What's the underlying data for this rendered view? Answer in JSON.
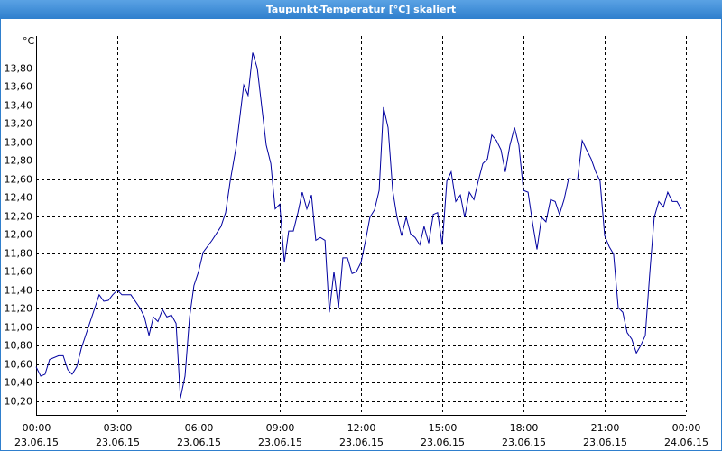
{
  "chart_data": {
    "type": "line",
    "title": "Taupunkt-Temperatur [°C] skaliert",
    "ylabel": "°C",
    "xlim": [
      0,
      24
    ],
    "ylim": [
      10.05,
      14.15
    ],
    "grid": true,
    "xticks": [
      {
        "value": 0,
        "label": "00:00",
        "sublabel": "23.06.15"
      },
      {
        "value": 3,
        "label": "03:00",
        "sublabel": "23.06.15"
      },
      {
        "value": 6,
        "label": "06:00",
        "sublabel": "23.06.15"
      },
      {
        "value": 9,
        "label": "09:00",
        "sublabel": "23.06.15"
      },
      {
        "value": 12,
        "label": "12:00",
        "sublabel": "23.06.15"
      },
      {
        "value": 15,
        "label": "15:00",
        "sublabel": "23.06.15"
      },
      {
        "value": 18,
        "label": "18:00",
        "sublabel": "23.06.15"
      },
      {
        "value": 21,
        "label": "21:00",
        "sublabel": "23.06.15"
      },
      {
        "value": 24,
        "label": "00:00",
        "sublabel": "24.06.15"
      }
    ],
    "yticks": [
      {
        "value": 10.2,
        "label": "10,20"
      },
      {
        "value": 10.4,
        "label": "10,40"
      },
      {
        "value": 10.6,
        "label": "10,60"
      },
      {
        "value": 10.8,
        "label": "10,80"
      },
      {
        "value": 11.0,
        "label": "11,00"
      },
      {
        "value": 11.2,
        "label": "11,20"
      },
      {
        "value": 11.4,
        "label": "11,40"
      },
      {
        "value": 11.6,
        "label": "11,60"
      },
      {
        "value": 11.8,
        "label": "11,80"
      },
      {
        "value": 12.0,
        "label": "12,00"
      },
      {
        "value": 12.2,
        "label": "12,20"
      },
      {
        "value": 12.4,
        "label": "12,40"
      },
      {
        "value": 12.6,
        "label": "12,60"
      },
      {
        "value": 12.8,
        "label": "12,80"
      },
      {
        "value": 13.0,
        "label": "13,00"
      },
      {
        "value": 13.2,
        "label": "13,20"
      },
      {
        "value": 13.4,
        "label": "13,40"
      },
      {
        "value": 13.6,
        "label": "13,60"
      },
      {
        "value": 13.8,
        "label": "13,80"
      }
    ],
    "x": [
      0,
      0.17,
      0.33,
      0.5,
      0.83,
      1,
      1.17,
      1.33,
      1.5,
      1.67,
      2,
      2.33,
      2.5,
      2.67,
      2.83,
      3,
      3.17,
      3.5,
      3.83,
      4,
      4.17,
      4.33,
      4.5,
      4.67,
      4.83,
      5,
      5.17,
      5.33,
      5.5,
      5.67,
      5.83,
      6,
      6.17,
      6.5,
      6.83,
      7,
      7.17,
      7.4,
      7.67,
      7.83,
      8,
      8.17,
      8.5,
      8.67,
      8.83,
      9,
      9.17,
      9.33,
      9.5,
      9.67,
      9.83,
      10,
      10.17,
      10.33,
      10.5,
      10.67,
      10.83,
      11,
      11.17,
      11.33,
      11.5,
      11.67,
      11.83,
      12,
      12.17,
      12.33,
      12.5,
      12.67,
      12.83,
      13,
      13.17,
      13.33,
      13.5,
      13.67,
      13.83,
      14,
      14.17,
      14.33,
      14.5,
      14.67,
      14.83,
      15,
      15.17,
      15.33,
      15.5,
      15.67,
      15.83,
      16,
      16.17,
      16.33,
      16.5,
      16.67,
      16.83,
      17,
      17.17,
      17.33,
      17.5,
      17.67,
      17.83,
      18,
      18.17,
      18.33,
      18.5,
      18.67,
      18.83,
      19,
      19.17,
      19.33,
      19.5,
      19.67,
      19.83,
      20,
      20.17,
      20.33,
      20.5,
      20.67,
      20.83,
      21,
      21.17,
      21.33,
      21.5,
      21.67,
      21.83,
      22,
      22.17,
      22.33,
      22.5,
      22.67,
      22.83,
      23,
      23.17,
      23.33,
      23.5,
      23.67,
      23.83
    ],
    "series": [
      {
        "name": "Taupunkt-Temperatur",
        "color": "#0000a0",
        "values": [
          10.57,
          10.47,
          10.49,
          10.65,
          10.69,
          10.69,
          10.54,
          10.49,
          10.57,
          10.77,
          11.06,
          11.35,
          11.28,
          11.29,
          11.35,
          11.4,
          11.35,
          11.35,
          11.21,
          11.11,
          10.91,
          11.11,
          11.06,
          11.19,
          11.11,
          11.13,
          11.04,
          10.23,
          10.47,
          11.11,
          11.45,
          11.6,
          11.81,
          11.94,
          12.09,
          12.24,
          12.58,
          12.97,
          13.62,
          13.51,
          13.97,
          13.8,
          12.97,
          12.77,
          12.28,
          12.33,
          11.7,
          12.04,
          12.04,
          12.24,
          12.46,
          12.28,
          12.43,
          11.94,
          11.97,
          11.94,
          11.16,
          11.6,
          11.21,
          11.75,
          11.75,
          11.58,
          11.6,
          11.7,
          11.94,
          12.19,
          12.27,
          12.48,
          13.38,
          13.16,
          12.48,
          12.19,
          11.99,
          12.19,
          12.01,
          11.97,
          11.89,
          12.09,
          11.91,
          12.22,
          12.24,
          11.89,
          12.58,
          12.68,
          12.36,
          12.43,
          12.19,
          12.46,
          12.38,
          12.58,
          12.77,
          12.82,
          13.08,
          13.02,
          12.92,
          12.68,
          12.97,
          13.16,
          12.97,
          12.48,
          12.46,
          12.14,
          11.84,
          12.19,
          12.14,
          12.38,
          12.36,
          12.22,
          12.38,
          12.61,
          12.6,
          12.6,
          13.02,
          12.92,
          12.82,
          12.68,
          12.58,
          11.99,
          11.87,
          11.79,
          11.21,
          11.16,
          10.94,
          10.87,
          10.72,
          10.8,
          10.91,
          11.6,
          12.19,
          12.36,
          12.3,
          12.46,
          12.36,
          12.36,
          12.28
        ]
      }
    ]
  }
}
